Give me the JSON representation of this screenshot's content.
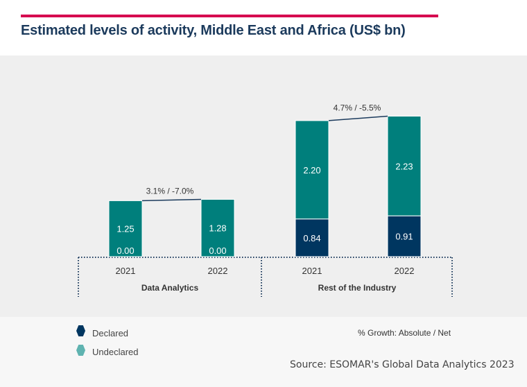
{
  "title": "Estimated levels of activity, Middle East and Africa (US$ bn)",
  "colors": {
    "declared": "#003660",
    "undeclared": "#007f7c",
    "undeclared_legend": "#5fb3b0",
    "accent": "#d6004f"
  },
  "chart_data": {
    "type": "bar",
    "stacked": true,
    "title": "Estimated levels of activity, Middle East and Africa (US$ bn)",
    "groups": [
      {
        "name": "Data Analytics",
        "categories": [
          "2021",
          "2022"
        ],
        "declared": [
          0.0,
          0.0
        ],
        "undeclared": [
          1.25,
          1.28
        ],
        "declared_labels": [
          "0.00",
          "0.00"
        ],
        "undeclared_labels": [
          "1.25",
          "1.28"
        ],
        "growth": "3.1% / -7.0%"
      },
      {
        "name": "Rest of the Industry",
        "categories": [
          "2021",
          "2022"
        ],
        "declared": [
          0.84,
          0.91
        ],
        "undeclared": [
          2.2,
          2.23
        ],
        "declared_labels": [
          "0.84",
          "0.91"
        ],
        "undeclared_labels": [
          "2.20",
          "2.23"
        ],
        "growth": "4.7% / -5.5%"
      }
    ],
    "series": [
      {
        "name": "Declared"
      },
      {
        "name": "Undeclared"
      }
    ],
    "legend_position": "bottom-left",
    "grid": false
  },
  "legend": {
    "declared": "Declared",
    "undeclared": "Undeclared"
  },
  "growth_note": "% Growth: Absolute / Net",
  "source": "Source: ESOMAR's Global Data Analytics 2023"
}
